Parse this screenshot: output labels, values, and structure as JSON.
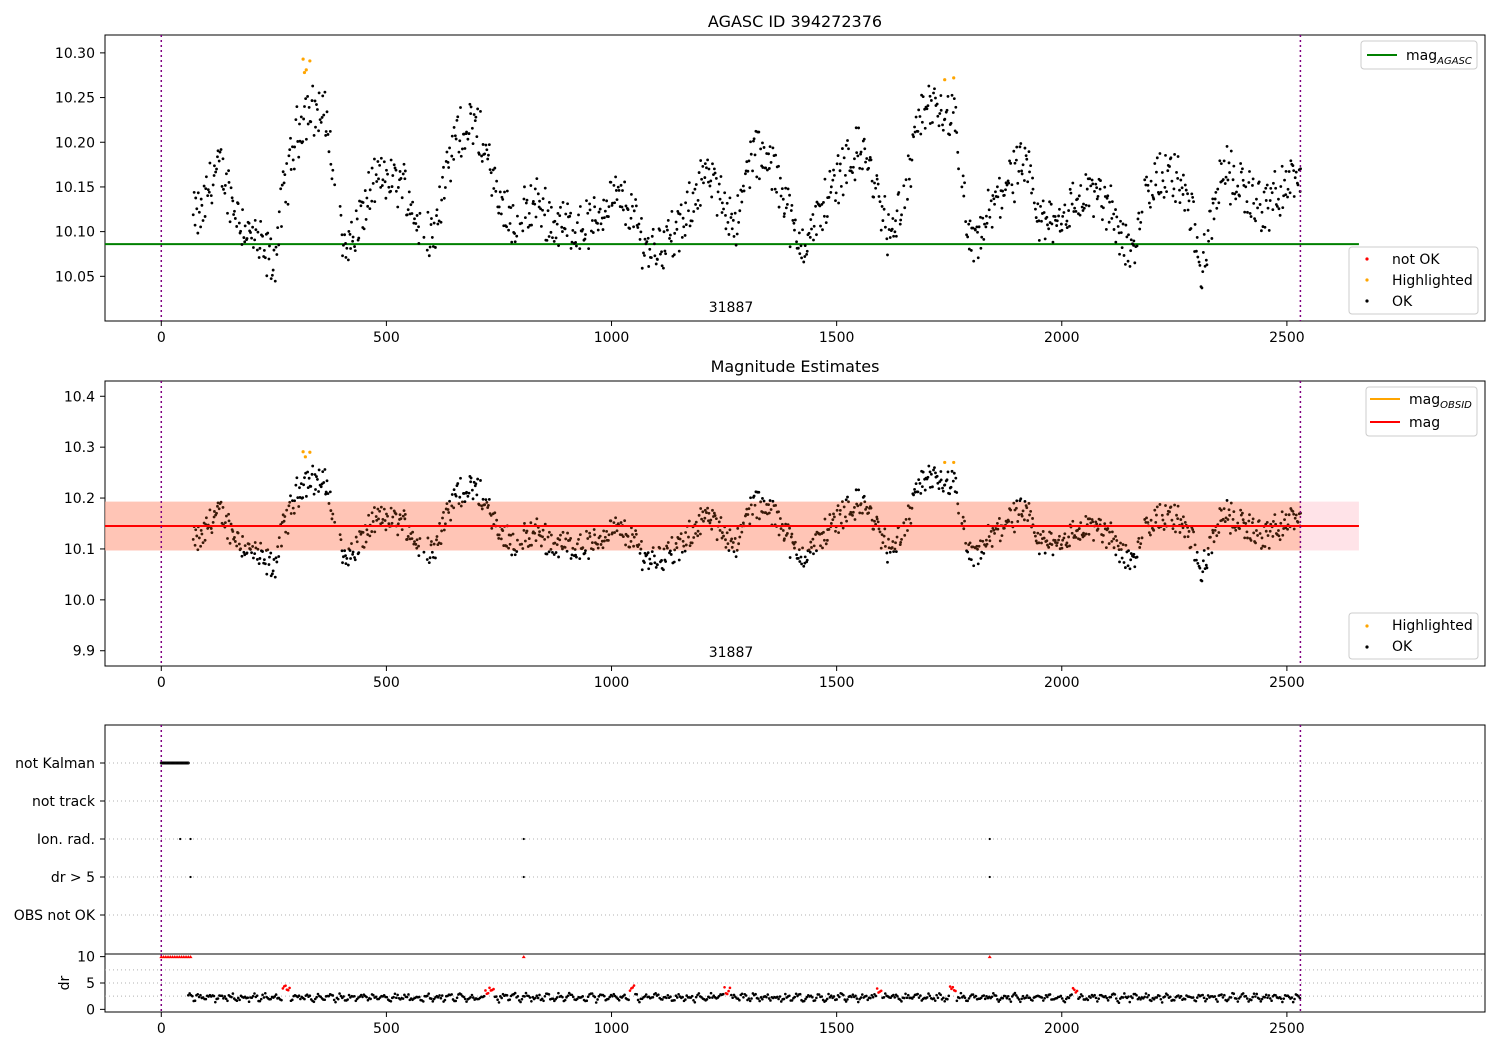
{
  "colors": {
    "ok": "#000000",
    "highlighted": "#ffa500",
    "not_ok": "#ff0000",
    "agasc_line": "#008000",
    "mag_line": "#ff0000",
    "mag_obsid": "#ffa500",
    "band_outer": "#ffc0cb",
    "band_inner": "#ffa07a",
    "event_line": "#800080",
    "grid": "#b0b0b0"
  },
  "chart_data": [
    {
      "type": "scatter",
      "title": "AGASC ID 394272376",
      "xlim": [
        -125,
        2940
      ],
      "ylim": [
        10.0,
        10.32
      ],
      "xticks": [
        0,
        500,
        1000,
        1500,
        2000,
        2500
      ],
      "yticks": [
        10.05,
        10.1,
        10.15,
        10.2,
        10.25,
        10.3
      ],
      "event_lines_x": [
        0,
        2530
      ],
      "observation_label": {
        "text": "31887",
        "x": 1265
      },
      "reference_line": {
        "name": "mag_AGASC",
        "value": 10.086,
        "x_range": [
          -125,
          2660
        ]
      },
      "series_legend": [
        "not OK",
        "Highlighted",
        "OK"
      ],
      "highlighted_points": [
        [
          315,
          10.293
        ],
        [
          318,
          10.278
        ],
        [
          322,
          10.281
        ],
        [
          330,
          10.291
        ],
        [
          1740,
          10.27
        ],
        [
          1760,
          10.272
        ]
      ],
      "ok_points_x_range": [
        70,
        2530
      ],
      "ok_points_y_range": [
        10.03,
        10.27
      ]
    },
    {
      "type": "scatter",
      "title": "Magnitude Estimates",
      "xlim": [
        -125,
        2940
      ],
      "ylim": [
        9.87,
        10.43
      ],
      "xticks": [
        0,
        500,
        1000,
        1500,
        2000,
        2500
      ],
      "yticks": [
        9.9,
        10.0,
        10.1,
        10.2,
        10.3,
        10.4
      ],
      "event_lines_x": [
        0,
        2530
      ],
      "observation_label": {
        "text": "31887",
        "x": 1265
      },
      "mag": 10.145,
      "mag_obsid": 10.145,
      "mag_band": [
        10.097,
        10.193
      ],
      "band_x_range": [
        -125,
        2660
      ],
      "line_legend": [
        {
          "name": "mag",
          "sub": "OBSID"
        },
        {
          "name": "mag",
          "sub": ""
        }
      ],
      "series_legend": [
        "Highlighted",
        "OK"
      ],
      "highlighted_points": [
        [
          315,
          10.291
        ],
        [
          320,
          10.281
        ],
        [
          330,
          10.29
        ],
        [
          1740,
          10.27
        ],
        [
          1760,
          10.27
        ]
      ]
    },
    {
      "type": "scatter",
      "title": "",
      "xlim": [
        -125,
        2940
      ],
      "categories": [
        "not Kalman",
        "not track",
        "Ion. rad.",
        "dr > 5",
        "OBS not OK"
      ],
      "flags": {
        "not Kalman": {
          "x_range": [
            0,
            60
          ]
        },
        "not track": {
          "x_range": null
        },
        "Ion. rad.": {
          "x": [
            42,
            65,
            805,
            1840
          ]
        },
        "dr > 5": {
          "x": [
            65,
            805,
            1840
          ]
        },
        "OBS not OK": {
          "x": []
        }
      },
      "event_lines_x": [
        0,
        2530
      ]
    },
    {
      "type": "scatter",
      "title": "",
      "ylabel": "dr",
      "xlim": [
        -125,
        2940
      ],
      "ylim": [
        -0.5,
        10.5
      ],
      "xticks": [
        0,
        500,
        1000,
        1500,
        2000,
        2500
      ],
      "yticks": [
        0,
        5,
        10
      ],
      "event_lines_x": [
        0,
        2530
      ],
      "clipped_points_x": [
        0,
        5,
        10,
        15,
        20,
        25,
        30,
        35,
        40,
        45,
        50,
        55,
        60,
        65,
        805,
        1840
      ],
      "red_segments": [
        [
          268,
          285
        ],
        [
          720,
          740
        ],
        [
          1040,
          1050
        ],
        [
          1250,
          1265
        ],
        [
          1590,
          1600
        ],
        [
          1750,
          1765
        ],
        [
          2025,
          2035
        ]
      ]
    }
  ]
}
